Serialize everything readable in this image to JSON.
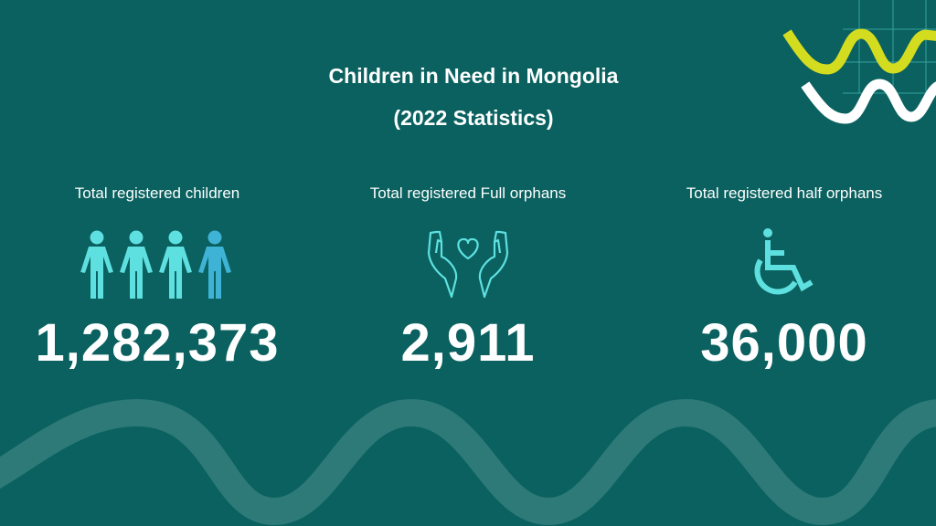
{
  "title_line1": "Children in Need in Mongolia",
  "title_line2": "(2022 Statistics)",
  "stats": [
    {
      "label": "Total registered children",
      "value": "1,282,373",
      "icon": "people-group-icon"
    },
    {
      "label": "Total registered Full orphans",
      "value": "2,911",
      "icon": "hands-heart-icon"
    },
    {
      "label": "Total registered half orphans",
      "value": "36,000",
      "icon": "wheelchair-icon"
    }
  ],
  "colors": {
    "background": "#0a615f",
    "accent_yellow": "#d4dc1f",
    "icon_cyan": "#5fe0e0",
    "wave": "#2d7a78"
  }
}
